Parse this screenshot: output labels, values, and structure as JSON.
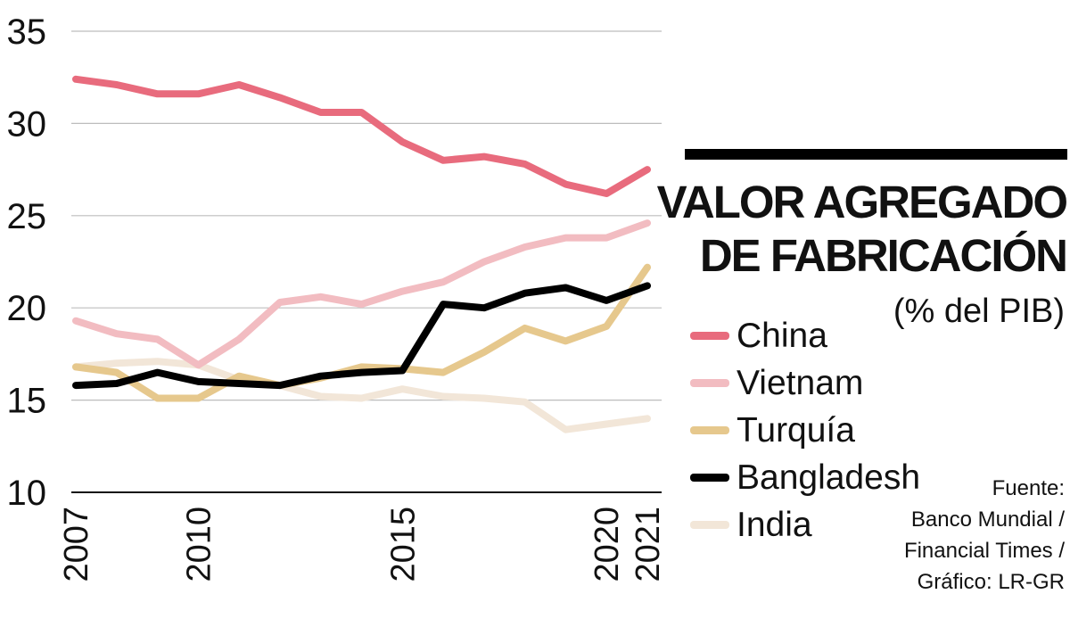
{
  "chart_data": {
    "type": "line",
    "title": "VALOR AGREGADO DE FABRICACIÓN",
    "title_lines": [
      "VALOR AGREGADO",
      "DE FABRICACIÓN"
    ],
    "subtitle": "(% del PIB)",
    "ylim": [
      10,
      35
    ],
    "yticks": [
      10,
      15,
      20,
      25,
      30,
      35
    ],
    "xlim": [
      2007,
      2021
    ],
    "xticks": [
      2007,
      2010,
      2015,
      2020,
      2021
    ],
    "x": [
      2007,
      2008,
      2009,
      2010,
      2011,
      2012,
      2013,
      2014,
      2015,
      2016,
      2017,
      2018,
      2019,
      2020,
      2021
    ],
    "series": [
      {
        "name": "India",
        "color": "#f2e6d8",
        "values": [
          16.8,
          17.0,
          17.1,
          16.9,
          16.1,
          15.8,
          15.2,
          15.1,
          15.6,
          15.2,
          15.1,
          14.9,
          13.4,
          13.7,
          14.0
        ]
      },
      {
        "name": "Vietnam",
        "color": "#f2bcc1",
        "values": [
          19.3,
          18.6,
          18.3,
          16.9,
          18.3,
          20.3,
          20.6,
          20.2,
          20.9,
          21.4,
          22.5,
          23.3,
          23.8,
          23.8,
          24.6
        ]
      },
      {
        "name": "Turquía",
        "color": "#e6c88d",
        "values": [
          16.8,
          16.5,
          15.1,
          15.1,
          16.3,
          15.8,
          16.2,
          16.8,
          16.7,
          16.5,
          17.6,
          18.9,
          18.2,
          19.0,
          22.2
        ]
      },
      {
        "name": "Bangladesh",
        "color": "#000000",
        "values": [
          15.8,
          15.9,
          16.5,
          16.0,
          15.9,
          15.8,
          16.3,
          16.5,
          16.6,
          20.2,
          20.0,
          20.8,
          21.1,
          20.4,
          21.2
        ]
      },
      {
        "name": "China",
        "color": "#e86b7d",
        "values": [
          32.4,
          32.1,
          31.6,
          31.6,
          32.1,
          31.4,
          30.6,
          30.6,
          29.0,
          28.0,
          28.2,
          27.8,
          26.7,
          26.2,
          27.5
        ]
      }
    ],
    "legend": [
      {
        "name": "China",
        "color": "#e86b7d"
      },
      {
        "name": "Vietnam",
        "color": "#f2bcc1"
      },
      {
        "name": "Turquía",
        "color": "#e6c88d"
      },
      {
        "name": "Bangladesh",
        "color": "#000000"
      },
      {
        "name": "India",
        "color": "#f2e6d8"
      }
    ],
    "grid": true
  },
  "source": {
    "lines": [
      "Fuente:",
      "Banco Mundial /",
      "Financial Times /",
      "Gráfico: LR-GR"
    ]
  }
}
